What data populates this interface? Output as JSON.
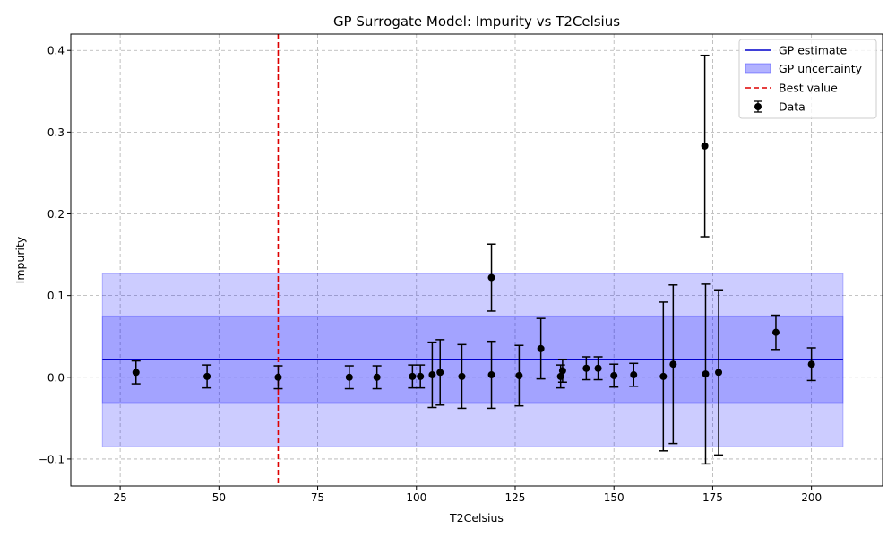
{
  "chart_data": {
    "type": "scatter",
    "title": "GP Surrogate Model: Impurity vs T2Celsius",
    "xlabel": "T2Celsius",
    "ylabel": "Impurity",
    "xlim": [
      12.5,
      218
    ],
    "ylim": [
      -0.133,
      0.42
    ],
    "xticks": [
      25,
      50,
      75,
      100,
      125,
      150,
      175,
      200
    ],
    "yticks": [
      -0.1,
      0.0,
      0.1,
      0.2,
      0.3,
      0.4
    ],
    "xtick_labels": [
      "25",
      "50",
      "75",
      "100",
      "125",
      "150",
      "175",
      "200"
    ],
    "ytick_labels": [
      "−0.1",
      "0.0",
      "0.1",
      "0.2",
      "0.3",
      "0.4"
    ],
    "grid": true,
    "legend_position": "top-right",
    "legend": [
      "GP estimate",
      "GP uncertainty",
      "Best value",
      "Data"
    ],
    "gp_estimate": {
      "x": [
        20.5,
        208
      ],
      "y": [
        0.022,
        0.022
      ],
      "color": "#0000cc"
    },
    "gp_uncertainty": {
      "x": [
        20.5,
        208
      ],
      "bands": [
        {
          "lower": -0.085,
          "upper": 0.127
        },
        {
          "lower": -0.031,
          "upper": 0.075
        }
      ],
      "color": "#0000ff"
    },
    "best_value": {
      "x": 65,
      "color": "#dd0000"
    },
    "data": {
      "x": [
        29,
        47,
        65,
        83,
        90,
        99,
        101,
        104,
        106,
        111.5,
        119,
        119,
        126,
        131.5,
        136.5,
        137,
        143,
        146,
        150,
        155,
        162.5,
        165,
        173,
        173.2,
        176.5,
        191,
        200
      ],
      "y": [
        0.006,
        0.001,
        0.0,
        0.0,
        0.0,
        0.001,
        0.001,
        0.003,
        0.006,
        0.001,
        0.122,
        0.003,
        0.002,
        0.035,
        0.001,
        0.008,
        0.011,
        0.011,
        0.002,
        0.003,
        0.001,
        0.016,
        0.283,
        0.004,
        0.006,
        0.055,
        0.016
      ],
      "err": [
        0.014,
        0.014,
        0.014,
        0.014,
        0.014,
        0.014,
        0.014,
        0.04,
        0.04,
        0.039,
        0.041,
        0.041,
        0.037,
        0.037,
        0.014,
        0.014,
        0.014,
        0.014,
        0.014,
        0.014,
        0.091,
        0.097,
        0.111,
        0.11,
        0.101,
        0.021,
        0.02
      ],
      "color": "#000000"
    }
  }
}
